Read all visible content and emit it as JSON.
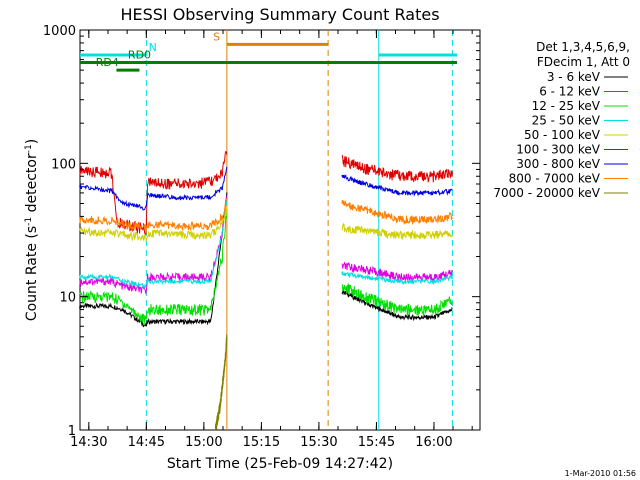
{
  "chart_data": {
    "type": "line",
    "title": "HESSI Observing Summary Count Rates",
    "xlabel": "Start Time (25-Feb-09 14:27:42)",
    "ylabel": "Count Rate (s",
    "ylabel_sup": "-1",
    "ylabel_mid": " detector",
    "ylabel_end": ")",
    "x_range_min": [
      14.4617,
      16.2
    ],
    "y_range": [
      1,
      1000
    ],
    "y_scale": "log",
    "x_ticks": [
      {
        "value": 14.5,
        "label": "14:30"
      },
      {
        "value": 14.75,
        "label": "14:45"
      },
      {
        "value": 15.0,
        "label": "15:00"
      },
      {
        "value": 15.25,
        "label": "15:15"
      },
      {
        "value": 15.5,
        "label": "15:30"
      },
      {
        "value": 15.75,
        "label": "15:45"
      },
      {
        "value": 16.0,
        "label": "16:00"
      }
    ],
    "y_ticks": [
      {
        "value": 1,
        "label": "1"
      },
      {
        "value": 10,
        "label": "10"
      },
      {
        "value": 100,
        "label": "100"
      },
      {
        "value": 1000,
        "label": "1000"
      }
    ],
    "legend": {
      "position": "right",
      "header": [
        "Det 1,3,4,5,6,9,",
        "FDecim 1, Att 0"
      ]
    },
    "series": [
      {
        "name": "3 - 6 keV",
        "color": "#000000",
        "segments": [
          {
            "x": [
              14.46,
              14.6,
              14.65,
              14.75,
              14.755,
              14.9,
              15.03,
              15.08,
              15.1
            ],
            "y": [
              8.5,
              8.5,
              8,
              6,
              6.5,
              6.5,
              6.5,
              30,
              60
            ]
          },
          {
            "x": [
              15.6,
              15.7,
              15.85,
              16.0,
              16.08
            ],
            "y": [
              11,
              9,
              7,
              7,
              8
            ]
          }
        ]
      },
      {
        "name": "6 - 12 keV",
        "color": "#e000e0",
        "segments": [
          {
            "x": [
              14.46,
              14.6,
              14.65,
              14.75,
              14.755,
              14.9,
              15.03,
              15.08,
              15.1
            ],
            "y": [
              13,
              13,
              12,
              11,
              14,
              14,
              14,
              30,
              60
            ]
          },
          {
            "x": [
              15.6,
              15.7,
              15.85,
              16.0,
              16.08
            ],
            "y": [
              17,
              16,
              14,
              14,
              15
            ]
          }
        ]
      },
      {
        "name": "12 - 25 keV",
        "color": "#00e000",
        "segments": [
          {
            "x": [
              14.46,
              14.6,
              14.65,
              14.75,
              14.755,
              14.9,
              15.03,
              15.08,
              15.1
            ],
            "y": [
              10,
              10,
              9,
              6.5,
              8,
              8,
              8,
              20,
              45
            ]
          },
          {
            "x": [
              15.6,
              15.7,
              15.85,
              16.0,
              16.08
            ],
            "y": [
              12,
              10,
              8,
              8,
              9.5
            ]
          }
        ]
      },
      {
        "name": "25 - 50 keV",
        "color": "#00e0e0",
        "segments": [
          {
            "x": [
              14.46,
              14.6,
              14.65,
              14.75,
              14.755,
              14.9,
              15.03,
              15.08,
              15.1
            ],
            "y": [
              14,
              14,
              13,
              12,
              13,
              13,
              13,
              30,
              55
            ]
          },
          {
            "x": [
              15.6,
              15.7,
              15.85,
              16.0,
              16.08
            ],
            "y": [
              15,
              14,
              13,
              13,
              14
            ]
          }
        ]
      },
      {
        "name": "50 - 100 keV",
        "color": "#d0d000",
        "segments": [
          {
            "x": [
              14.46,
              14.6,
              14.65,
              14.75,
              14.755,
              14.9,
              15.03,
              15.08,
              15.1
            ],
            "y": [
              31,
              30,
              29,
              28,
              30,
              29,
              29,
              35,
              45
            ]
          },
          {
            "x": [
              15.6,
              15.7,
              15.85,
              16.0,
              16.08
            ],
            "y": [
              33,
              31,
              29,
              29,
              30
            ]
          }
        ]
      },
      {
        "name": "100 - 300 keV",
        "color": "#e00000",
        "segments": [
          {
            "x": [
              14.46,
              14.6,
              14.62,
              14.75,
              14.755,
              14.9,
              15.03,
              15.08,
              15.1
            ],
            "y": [
              88,
              85,
              36,
              32,
              72,
              70,
              72,
              85,
              125
            ]
          },
          {
            "x": [
              15.6,
              15.7,
              15.85,
              16.0,
              16.08
            ],
            "y": [
              105,
              92,
              80,
              80,
              84
            ]
          }
        ]
      },
      {
        "name": "300 - 800 keV",
        "color": "#0000e0",
        "segments": [
          {
            "x": [
              14.46,
              14.6,
              14.65,
              14.75,
              14.755,
              14.9,
              15.03,
              15.08,
              15.1
            ],
            "y": [
              67,
              62,
              50,
              46,
              58,
              55,
              56,
              65,
              95
            ]
          },
          {
            "x": [
              15.6,
              15.7,
              15.85,
              16.0,
              16.08
            ],
            "y": [
              80,
              70,
              60,
              60,
              62
            ]
          }
        ]
      },
      {
        "name": "800 - 7000 keV",
        "color": "#ff8000",
        "segments": [
          {
            "x": [
              14.46,
              14.6,
              14.65,
              14.75,
              14.755,
              14.9,
              15.03,
              15.08,
              15.1
            ],
            "y": [
              38,
              37,
              35,
              33,
              35,
              34,
              34,
              40,
              55
            ]
          },
          {
            "x": [
              15.6,
              15.7,
              15.85,
              16.0,
              16.08
            ],
            "y": [
              50,
              45,
              38,
              38,
              40
            ]
          }
        ]
      },
      {
        "name": "7000 - 20000 keV",
        "color": "#808000",
        "segments": [
          {
            "x": [
              15.05,
              15.07,
              15.09,
              15.1
            ],
            "y": [
              1,
              1.5,
              3,
              5
            ]
          }
        ]
      }
    ],
    "vertical_lines": [
      {
        "x": 14.75,
        "color": "#00e0e0",
        "style": "dashed"
      },
      {
        "x": 15.1,
        "color": "#e08000",
        "style": "solid"
      },
      {
        "x": 15.54,
        "color": "#e08000",
        "style": "dashed"
      },
      {
        "x": 15.76,
        "color": "#00e0e0",
        "style": "solid"
      },
      {
        "x": 16.08,
        "color": "#00e0e0",
        "style": "dashed"
      }
    ],
    "flags": [
      {
        "label": "N",
        "color": "#00e0e0",
        "y": 650,
        "ranges": [
          [
            14.46,
            14.75
          ],
          [
            15.76,
            16.1
          ]
        ],
        "label_x": 14.76
      },
      {
        "label": "S",
        "color": "#e08000",
        "y": 780,
        "ranges": [
          [
            15.1,
            15.54
          ]
        ],
        "label_x": 15.04
      },
      {
        "label": "RD0",
        "color": "#008000",
        "y": 570,
        "ranges": [
          [
            14.46,
            16.1
          ]
        ],
        "label_x": 14.67
      },
      {
        "label": "RD4",
        "color": "#008000",
        "y": 500,
        "ranges": [
          [
            14.62,
            14.72
          ]
        ],
        "label_x": 14.53
      }
    ]
  },
  "footer": {
    "timestamp": "1-Mar-2010 01:56"
  }
}
